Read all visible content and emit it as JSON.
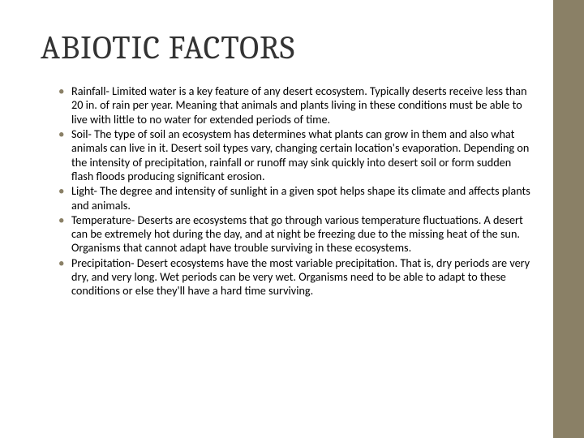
{
  "title": "ABIOTIC FACTORS",
  "bullets": [
    "Rainfall- Limited water is a key feature of any desert ecosystem. Typically deserts receive less than 20 in. of rain per year. Meaning that animals and plants living in these conditions must be able to live with little to no water for extended periods of time.",
    "Soil- The type of soil an ecosystem has determines what plants can grow in them and also what animals can live in it. Desert soil types vary, changing certain location's evaporation. Depending on the intensity of precipitation, rainfall or runoff may sink quickly into desert soil or form sudden flash floods producing significant erosion.",
    "Light-  The degree and intensity of sunlight in a given spot helps shape its climate and affects plants and animals.",
    "Temperature- Deserts are ecosystems that go through various temperature fluctuations. A desert can be extremely hot during the day, and at night be freezing due to the missing heat of the sun. Organisms that cannot adapt have trouble surviving in these ecosystems.",
    "Precipitation- Desert ecosystems have the most variable precipitation. That is, dry periods are very dry, and very long. Wet periods can be very wet. Organisms need to be able to adapt to these conditions or else they'll have a hard time surviving."
  ],
  "colors": {
    "sidebar": "#8a8066",
    "bullet": "#8a8066",
    "title": "#333333",
    "text": "#000000",
    "background": "#ffffff"
  },
  "fonts": {
    "title_family": "Cambria, Georgia, serif",
    "title_size": 40,
    "body_family": "Calibri, 'Segoe UI', sans-serif",
    "body_size": 14.2
  }
}
